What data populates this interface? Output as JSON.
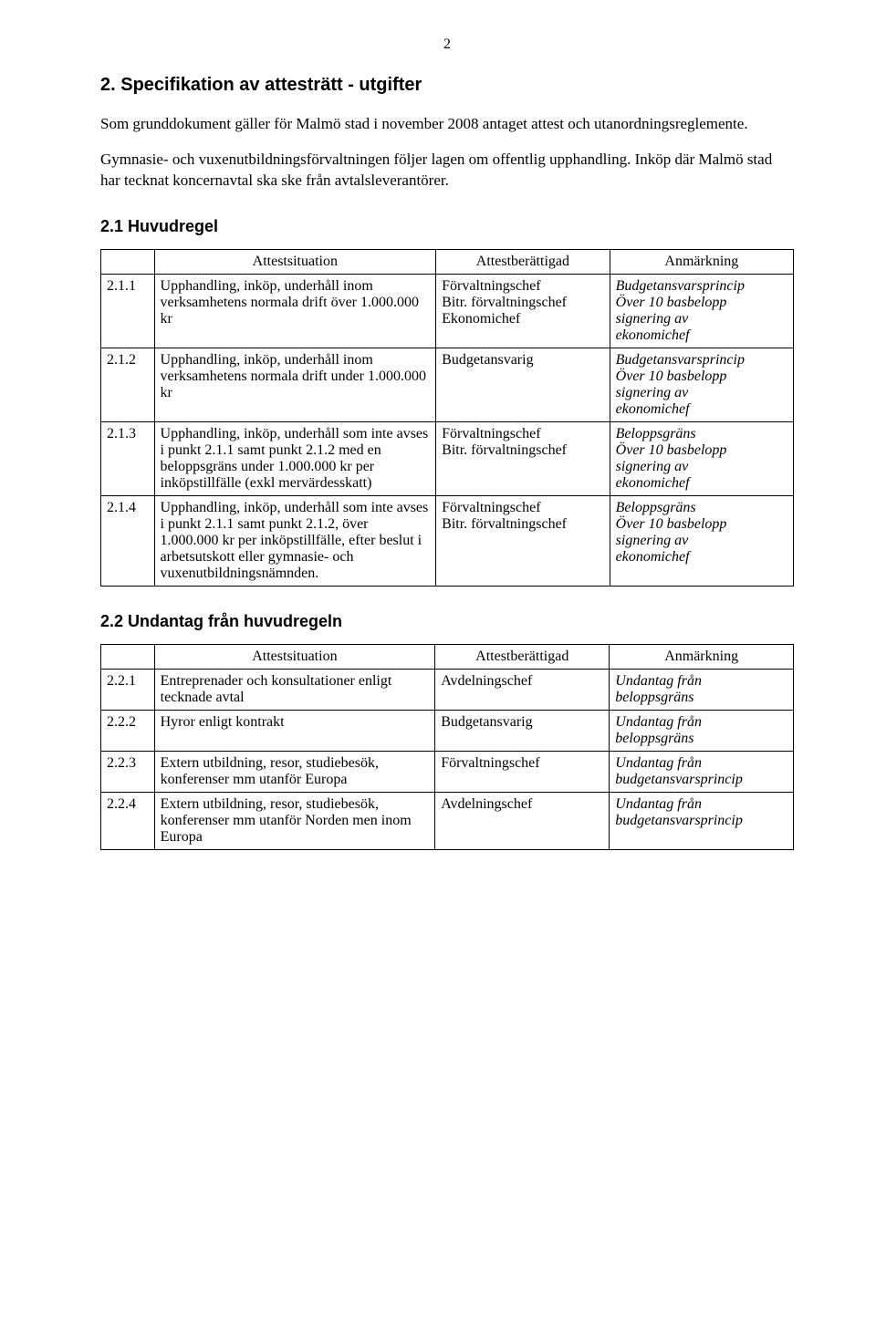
{
  "page_number": "2",
  "section_title": "2. Specifikation av attesträtt - utgifter",
  "intro_para1": "Som grunddokument gäller för Malmö stad i november 2008 antaget attest och utanordningsreglemente.",
  "intro_para2": "Gymnasie- och vuxenutbildningsförvaltningen följer lagen om offentlig upphandling. Inköp där Malmö stad har tecknat koncernavtal ska ske från avtalsleverantörer.",
  "sub1_title": "2.1 Huvudregel",
  "headers": {
    "col1": "",
    "col2": "Attestsituation",
    "col3": "Attestberättigad",
    "col4": "Anmärkning"
  },
  "table1": [
    {
      "num": "2.1.1",
      "situation": "Upphandling, inköp, underhåll inom verksamhetens normala drift över 1.000.000 kr",
      "entitled": [
        "Förvaltningschef",
        "Bitr. förvaltningschef",
        "Ekonomichef"
      ],
      "remark": [
        "Budgetansvarsprincip",
        "Över 10 basbelopp",
        "signering av",
        "ekonomichef"
      ]
    },
    {
      "num": "2.1.2",
      "situation": "Upphandling, inköp, underhåll inom verksamhetens normala drift under 1.000.000 kr",
      "entitled": [
        "Budgetansvarig"
      ],
      "remark": [
        "Budgetansvarsprincip",
        "Över 10 basbelopp",
        "signering av",
        "ekonomichef"
      ]
    },
    {
      "num": "2.1.3",
      "situation": "Upphandling, inköp, underhåll som inte avses i punkt 2.1.1 samt punkt 2.1.2  med en beloppsgräns under 1.000.000 kr per inköpstillfälle (exkl mervärdesskatt)",
      "entitled": [
        "Förvaltningschef",
        "Bitr. förvaltningschef"
      ],
      "remark": [
        "Beloppsgräns",
        "Över 10 basbelopp",
        "signering av",
        "ekonomichef"
      ]
    },
    {
      "num": "2.1.4",
      "situation": "Upphandling, inköp, underhåll som inte avses i punkt 2.1.1 samt punkt 2.1.2, över 1.000.000 kr per inköpstillfälle, efter beslut i arbetsutskott eller gymnasie- och vuxenutbildningsnämnden.",
      "entitled": [
        "Förvaltningschef",
        "Bitr. förvaltningschef"
      ],
      "remark": [
        "Beloppsgräns",
        "Över 10 basbelopp",
        "signering av",
        "ekonomichef"
      ]
    }
  ],
  "sub2_title": "2.2 Undantag från huvudregeln",
  "table2": [
    {
      "num": "2.2.1",
      "situation": "Entreprenader och konsultationer enligt tecknade avtal",
      "entitled": [
        "Avdelningschef"
      ],
      "remark": [
        "Undantag från",
        "beloppsgräns"
      ]
    },
    {
      "num": "2.2.2",
      "situation": "Hyror enligt kontrakt",
      "entitled": [
        "Budgetansvarig"
      ],
      "remark": [
        "Undantag från",
        "beloppsgräns"
      ]
    },
    {
      "num": "2.2.3",
      "situation": "Extern utbildning, resor, studiebesök,\nkonferenser mm utanför Europa",
      "entitled": [
        "Förvaltningschef"
      ],
      "remark": [
        "Undantag från",
        "budgetansvarsprincip"
      ]
    },
    {
      "num": "2.2.4",
      "situation": "Extern utbildning, resor, studiebesök,\nkonferenser mm utanför Norden men inom Europa",
      "entitled": [
        "Avdelningschef"
      ],
      "remark": [
        "Undantag från",
        "budgetansvarsprincip"
      ]
    }
  ]
}
